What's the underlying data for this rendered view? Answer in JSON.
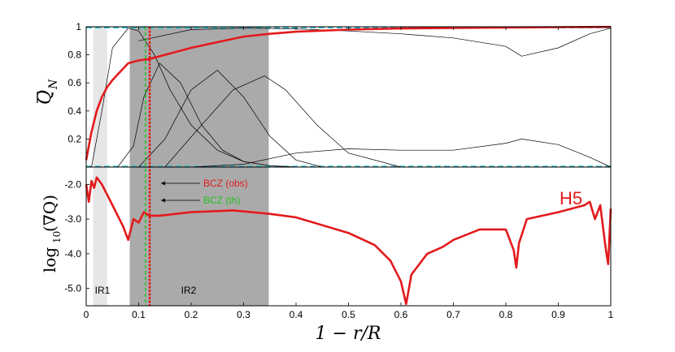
{
  "chart_data": [
    {
      "type": "line",
      "panel": "top",
      "ylabel_base": "Q",
      "ylabel_sub": "N",
      "ylim": [
        0,
        1
      ],
      "yticks": [
        0.2,
        0.4,
        0.6,
        0.8
      ],
      "ytick_labels": [
        "0.2",
        "0.4",
        "0.6",
        "0.8"
      ],
      "ytop_label": "1",
      "xlim": [
        0,
        1
      ],
      "series": [
        {
          "name": "Q_N main",
          "color": "#e31a1c",
          "x": [
            0,
            0.01,
            0.02,
            0.03,
            0.04,
            0.05,
            0.06,
            0.07,
            0.08,
            0.1,
            0.12,
            0.15,
            0.2,
            0.25,
            0.3,
            0.35,
            0.4,
            0.5,
            0.6,
            0.7,
            0.8,
            0.9,
            0.95,
            1.0
          ],
          "y": [
            0.05,
            0.25,
            0.4,
            0.5,
            0.57,
            0.62,
            0.66,
            0.7,
            0.74,
            0.76,
            0.77,
            0.8,
            0.85,
            0.89,
            0.93,
            0.95,
            0.965,
            0.98,
            0.988,
            0.992,
            0.995,
            0.997,
            0.998,
            0.999
          ]
        },
        {
          "name": "thin mode 1",
          "color": "#000000",
          "x": [
            0.01,
            0.03,
            0.05,
            0.08,
            0.1,
            0.13,
            0.16,
            0.2,
            0.25,
            0.3,
            0.35,
            0.4
          ],
          "y": [
            0.0,
            0.4,
            0.85,
            0.99,
            0.97,
            0.8,
            0.55,
            0.3,
            0.12,
            0.04,
            0.01,
            0.0
          ]
        },
        {
          "name": "thin mode 2",
          "color": "#000000",
          "x": [
            0.06,
            0.09,
            0.11,
            0.14,
            0.18,
            0.22,
            0.26,
            0.3,
            0.35,
            0.4
          ],
          "y": [
            0.0,
            0.15,
            0.5,
            0.74,
            0.6,
            0.3,
            0.12,
            0.04,
            0.01,
            0.0
          ]
        },
        {
          "name": "thin mode 3",
          "color": "#000000",
          "x": [
            0.1,
            0.15,
            0.2,
            0.25,
            0.3,
            0.35,
            0.4,
            0.45
          ],
          "y": [
            0.0,
            0.2,
            0.55,
            0.69,
            0.5,
            0.22,
            0.05,
            0.0
          ]
        },
        {
          "name": "thin mode 4",
          "color": "#000000",
          "x": [
            0.15,
            0.22,
            0.28,
            0.34,
            0.38,
            0.44,
            0.5,
            0.6
          ],
          "y": [
            0.0,
            0.3,
            0.55,
            0.65,
            0.55,
            0.3,
            0.1,
            0.0
          ]
        },
        {
          "name": "thin envelope upper",
          "color": "#000000",
          "x": [
            0.1,
            0.2,
            0.3,
            0.4,
            0.5,
            0.6,
            0.7,
            0.8,
            0.83,
            0.9,
            0.96,
            1.0
          ],
          "y": [
            0.9,
            0.98,
            0.99,
            0.985,
            0.97,
            0.95,
            0.92,
            0.86,
            0.79,
            0.85,
            0.95,
            0.99
          ]
        },
        {
          "name": "thin envelope lower",
          "color": "#000000",
          "x": [
            0.2,
            0.3,
            0.4,
            0.5,
            0.6,
            0.7,
            0.8,
            0.83,
            0.9,
            0.96,
            1.0
          ],
          "y": [
            0.0,
            0.02,
            0.1,
            0.13,
            0.12,
            0.12,
            0.17,
            0.2,
            0.16,
            0.07,
            0.0
          ]
        }
      ],
      "dashed_top_color": "#22b5c8"
    },
    {
      "type": "line",
      "panel": "bottom",
      "ylabel": "log10(∇Q)",
      "ylabel_base": "log",
      "ylabel_sub": "10",
      "ylabel_rest": "(∇Q)",
      "ylim": [
        -5.5,
        -1.5
      ],
      "yticks": [
        -5.0,
        -4.0,
        -3.0,
        -2.0
      ],
      "ytick_labels": [
        "-5.0",
        "-4.0",
        "-3.0",
        "-2.0"
      ],
      "xlim": [
        0,
        1
      ],
      "xticks": [
        0,
        0.1,
        0.2,
        0.3,
        0.4,
        0.5,
        0.6,
        0.7,
        0.8,
        0.9,
        1
      ],
      "xtick_labels": [
        "0",
        "0.1",
        "0.2",
        "0.3",
        "0.4",
        "0.5",
        "0.6",
        "0.7",
        "0.8",
        "0.9",
        "1"
      ],
      "xlabel": "1 − r/R",
      "series": [
        {
          "name": "log gradient",
          "color": "#e31a1c",
          "x": [
            0,
            0.005,
            0.01,
            0.015,
            0.02,
            0.03,
            0.04,
            0.05,
            0.06,
            0.07,
            0.08,
            0.09,
            0.1,
            0.11,
            0.12,
            0.14,
            0.2,
            0.28,
            0.35,
            0.4,
            0.5,
            0.55,
            0.58,
            0.6,
            0.61,
            0.62,
            0.65,
            0.68,
            0.7,
            0.75,
            0.8,
            0.815,
            0.82,
            0.825,
            0.84,
            0.9,
            0.95,
            0.96,
            0.97,
            0.98,
            0.99,
            0.995,
            1.0
          ],
          "y": [
            -2.0,
            -2.5,
            -1.9,
            -2.1,
            -1.8,
            -2.0,
            -2.3,
            -2.6,
            -2.9,
            -3.2,
            -3.6,
            -3.0,
            -3.1,
            -2.8,
            -2.9,
            -2.9,
            -2.8,
            -2.75,
            -2.85,
            -2.95,
            -3.4,
            -3.75,
            -4.2,
            -4.8,
            -5.45,
            -4.6,
            -4.0,
            -3.8,
            -3.6,
            -3.3,
            -3.3,
            -3.9,
            -4.4,
            -3.7,
            -3.0,
            -2.8,
            -2.6,
            -2.5,
            -3.0,
            -2.6,
            -3.8,
            -4.3,
            -2.7
          ]
        }
      ],
      "regions": [
        {
          "label": "IR1",
          "x0": 0.013,
          "x1": 0.04,
          "color": "#e6e6e6"
        },
        {
          "label": "IR2",
          "x0": 0.083,
          "x1": 0.348,
          "color": "#aaaaaa"
        }
      ],
      "bcz_obs": {
        "x": 0.121,
        "label": "BCZ (obs)",
        "color": "#e31a1c"
      },
      "bcz_th": {
        "x": 0.113,
        "label": "BCZ (th)",
        "color": "#22c222"
      },
      "panel_label": "H5"
    }
  ]
}
